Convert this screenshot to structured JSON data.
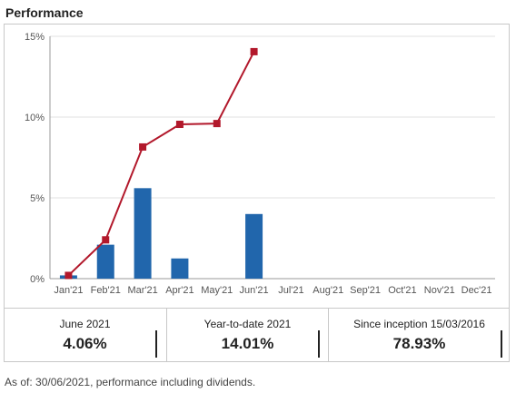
{
  "header": {
    "title": "Performance"
  },
  "chart_data": {
    "type": "bar",
    "categories": [
      "Jan'21",
      "Feb'21",
      "Mar'21",
      "Apr'21",
      "May'21",
      "Jun'21",
      "Jul'21",
      "Aug'21",
      "Sep'21",
      "Oct'21",
      "Nov'21",
      "Dec'21"
    ],
    "series": [
      {
        "type": "bar",
        "color": "#2166ac",
        "values": [
          0.2,
          2.1,
          5.6,
          1.25,
          null,
          4.0,
          null,
          null,
          null,
          null,
          null,
          null
        ]
      },
      {
        "type": "line",
        "color": "#b2182b",
        "marker": "square",
        "values": [
          0.2,
          2.4,
          8.15,
          9.55,
          9.6,
          14.05,
          null,
          null,
          null,
          null,
          null,
          null
        ]
      }
    ],
    "yticks": [
      "0%",
      "5%",
      "10%",
      "15%"
    ],
    "ylim": [
      0,
      15
    ],
    "grid": true,
    "title": "",
    "xlabel": "",
    "ylabel": ""
  },
  "stats": [
    {
      "label": "June 2021",
      "value": "4.06%"
    },
    {
      "label": "Year-to-date 2021",
      "value": "14.01%"
    },
    {
      "label": "Since inception 15/03/2016",
      "value": "78.93%"
    }
  ],
  "footnote": "As of: 30/06/2021, performance including dividends."
}
